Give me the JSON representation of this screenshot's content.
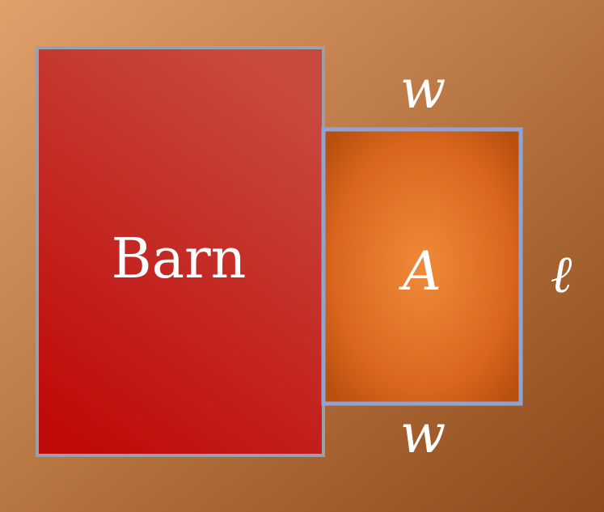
{
  "diagram": {
    "barn_label": "Barn",
    "area_label": "A",
    "top_side_label": "w",
    "bottom_side_label": "w",
    "right_side_label": "ℓ"
  },
  "colors": {
    "background_light": "#e0a06a",
    "background_dark": "#8e4a1a",
    "barn_fill_top": "#c84a3e",
    "barn_fill_bottom": "#c00a0a",
    "barn_border": "#9aa0a8",
    "pen_center": "#ef8a3a",
    "pen_edge": "#b8500e",
    "pen_border": "#8fa4d4",
    "text": "#ffffff"
  }
}
